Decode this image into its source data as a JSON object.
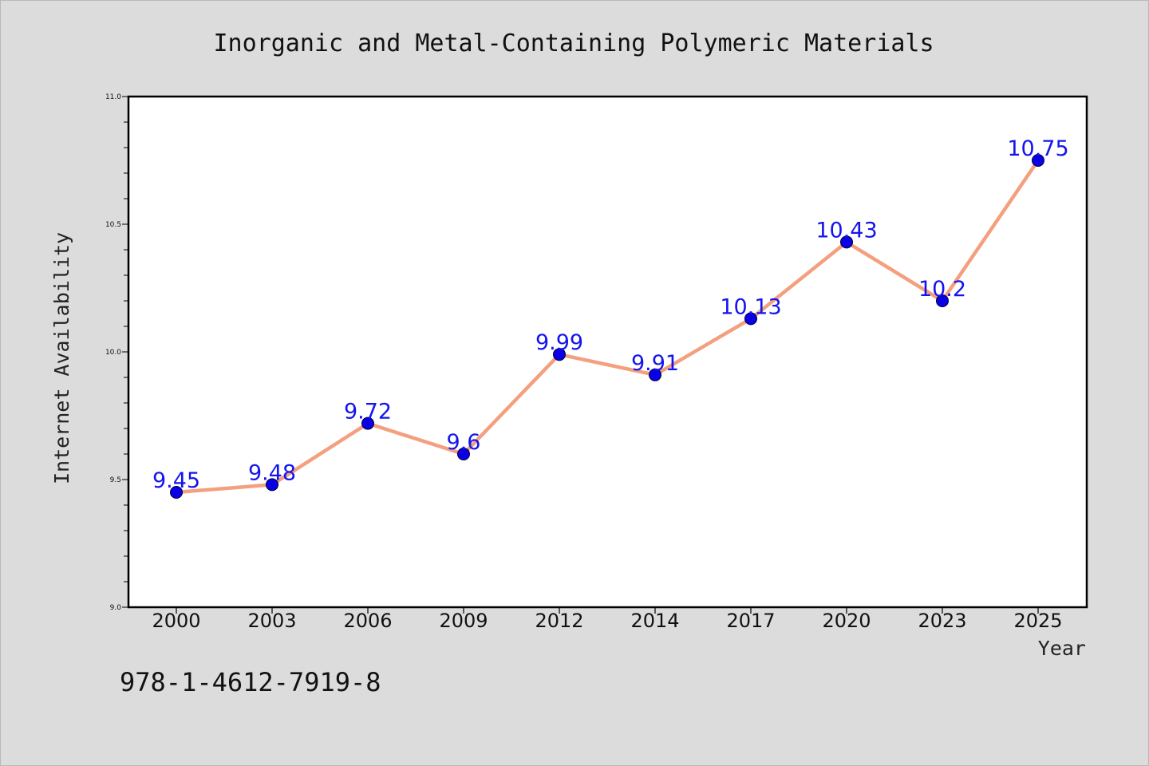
{
  "chart_data": {
    "type": "line",
    "title": "Inorganic and Metal-Containing Polymeric Materials",
    "xlabel": "Year",
    "ylabel": "Internet Availability",
    "categories": [
      "2000",
      "2003",
      "2006",
      "2009",
      "2012",
      "2014",
      "2017",
      "2020",
      "2023",
      "2025"
    ],
    "series": [
      {
        "values": [
          9.45,
          9.48,
          9.72,
          9.6,
          9.99,
          9.91,
          10.13,
          10.43,
          10.2,
          10.75
        ],
        "line_color": "#f4a07e",
        "marker_color": "#0a00e6",
        "data_labels": [
          "9.45",
          "9.48",
          "9.72",
          "9.6",
          "9.99",
          "9.91",
          "10.13",
          "10.43",
          "10.2",
          "10.75"
        ],
        "label_color": "#1414ee"
      }
    ],
    "ylim": [
      9.0,
      11.0
    ],
    "yticks": [
      "9.0",
      "9.5",
      "10.0",
      "10.5",
      "11.0"
    ],
    "grid": false,
    "legend": "none"
  },
  "footer": {
    "isbn": "978-1-4612-7919-8"
  }
}
